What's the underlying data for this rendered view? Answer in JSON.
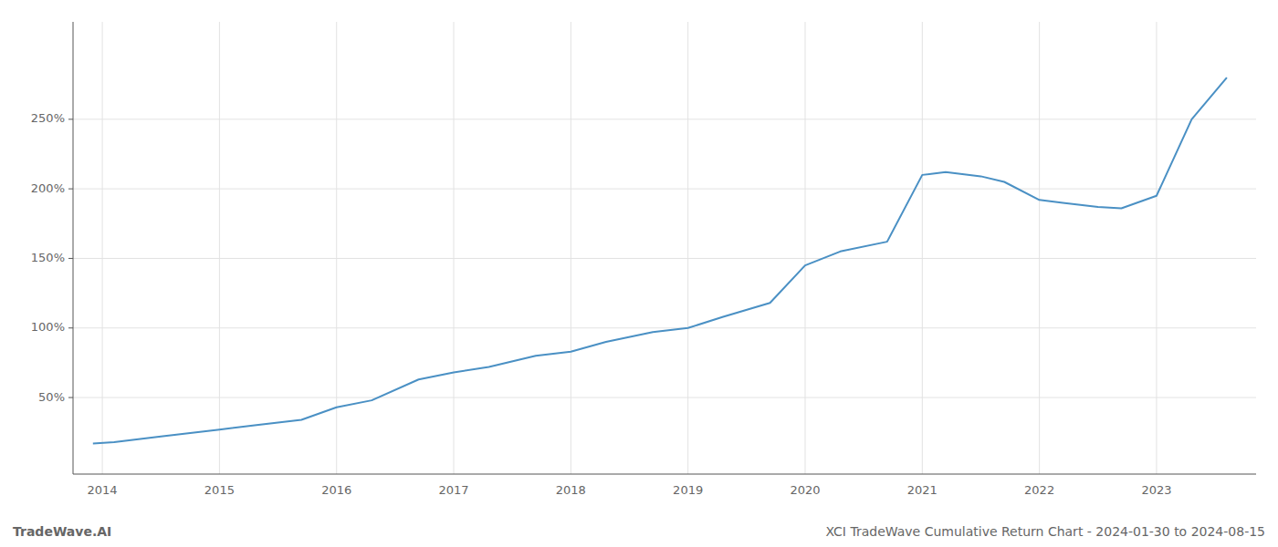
{
  "chart_data": {
    "type": "line",
    "title": "XCI TradeWave Cumulative Return Chart - 2024-01-30 to 2024-08-15",
    "annotations": [
      "TradeWave.AI"
    ],
    "x": [
      2013.92,
      2014.1,
      2014.5,
      2015.0,
      2015.3,
      2015.7,
      2016.0,
      2016.3,
      2016.7,
      2017.0,
      2017.3,
      2017.7,
      2018.0,
      2018.3,
      2018.7,
      2019.0,
      2019.3,
      2019.7,
      2020.0,
      2020.3,
      2020.7,
      2021.0,
      2021.2,
      2021.5,
      2021.7,
      2022.0,
      2022.2,
      2022.5,
      2022.7,
      2023.0,
      2023.3,
      2023.6
    ],
    "values": [
      17,
      18,
      22,
      27,
      30,
      34,
      43,
      48,
      63,
      68,
      72,
      80,
      83,
      90,
      97,
      100,
      108,
      118,
      145,
      155,
      162,
      210,
      212,
      209,
      205,
      192,
      190,
      187,
      186,
      195,
      250,
      280
    ],
    "color": "#4a90c4",
    "xlim": [
      2013.75,
      2023.85
    ],
    "xticks": [
      2014,
      2015,
      2016,
      2017,
      2018,
      2019,
      2020,
      2021,
      2022,
      2023
    ],
    "ylim": [
      -5,
      320
    ],
    "yticks": [
      {
        "value": 50,
        "label": "50%"
      },
      {
        "value": 100,
        "label": "100%"
      },
      {
        "value": 150,
        "label": "150%"
      },
      {
        "value": 200,
        "label": "200%"
      },
      {
        "value": 250,
        "label": "250%"
      }
    ],
    "grid": true
  }
}
